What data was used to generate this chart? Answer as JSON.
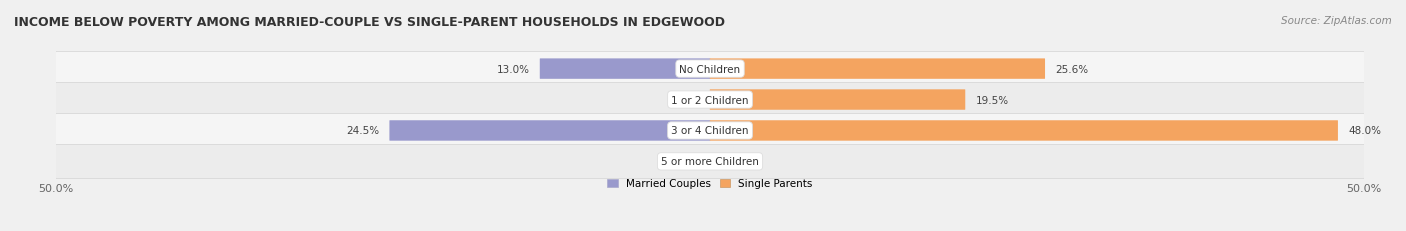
{
  "title": "INCOME BELOW POVERTY AMONG MARRIED-COUPLE VS SINGLE-PARENT HOUSEHOLDS IN EDGEWOOD",
  "source": "Source: ZipAtlas.com",
  "categories": [
    "No Children",
    "1 or 2 Children",
    "3 or 4 Children",
    "5 or more Children"
  ],
  "married_values": [
    13.0,
    0.0,
    24.5,
    0.0
  ],
  "single_values": [
    25.6,
    19.5,
    48.0,
    0.0
  ],
  "married_color": "#9999cc",
  "single_color": "#f4a460",
  "row_colors": [
    "#f5f5f5",
    "#ececec",
    "#f5f5f5",
    "#ececec"
  ],
  "fig_bg": "#f0f0f0",
  "xlim": 50.0,
  "title_fontsize": 9,
  "source_fontsize": 7.5,
  "label_fontsize": 7.5,
  "tick_fontsize": 8,
  "bar_height": 0.62,
  "figsize": [
    14.06,
    2.32
  ],
  "dpi": 100
}
